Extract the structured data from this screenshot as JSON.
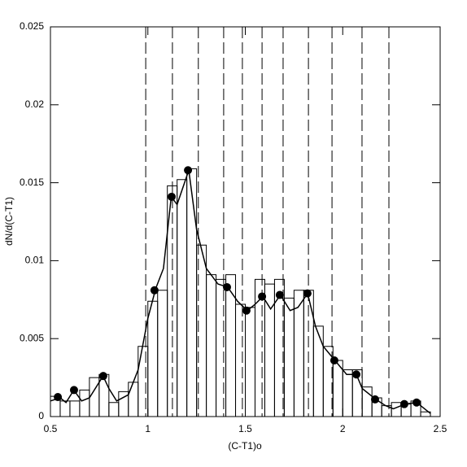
{
  "chart_data": {
    "type": "histogram",
    "xlabel": "(C-T1)o",
    "ylabel": "dN/d(C-T1)",
    "xlim": [
      0.5,
      2.5
    ],
    "ylim": [
      0,
      0.025
    ],
    "xticks": [
      0.5,
      1,
      1.5,
      2,
      2.5
    ],
    "yticks": [
      0,
      0.005,
      0.01,
      0.015,
      0.02,
      0.025
    ],
    "bins": [
      0.5,
      0.55,
      0.6,
      0.65,
      0.7,
      0.75,
      0.8,
      0.85,
      0.9,
      0.95,
      1.0,
      1.05,
      1.1,
      1.15,
      1.2,
      1.25,
      1.3,
      1.35,
      1.4,
      1.45,
      1.5,
      1.55,
      1.6,
      1.65,
      1.7,
      1.75,
      1.8,
      1.85,
      1.9,
      1.95,
      2.0,
      2.05,
      2.1,
      2.15,
      2.2,
      2.25,
      2.3,
      2.35,
      2.4,
      2.45
    ],
    "counts": [
      0.0013,
      0.001,
      0.001,
      0.0017,
      0.0025,
      0.0027,
      0.0009,
      0.0016,
      0.0022,
      0.0045,
      0.0074,
      0.0081,
      0.0148,
      0.0152,
      0.0159,
      0.011,
      0.0091,
      0.0088,
      0.0091,
      0.0072,
      0.007,
      0.0088,
      0.0085,
      0.0088,
      0.0076,
      0.0081,
      0.0081,
      0.0058,
      0.0045,
      0.0036,
      0.003,
      0.003,
      0.0019,
      0.0012,
      0.0007,
      0.0009,
      0.0008,
      0.001,
      0.0003
    ],
    "curve": {
      "x": [
        0.5,
        0.55,
        0.58,
        0.62,
        0.66,
        0.7,
        0.77,
        0.8,
        0.84,
        0.9,
        0.95,
        1.0,
        1.04,
        1.08,
        1.12,
        1.15,
        1.21,
        1.25,
        1.3,
        1.36,
        1.41,
        1.46,
        1.51,
        1.55,
        1.59,
        1.63,
        1.68,
        1.73,
        1.77,
        1.82,
        1.86,
        1.9,
        1.96,
        2.02,
        2.07,
        2.1,
        2.17,
        2.22,
        2.26,
        2.32,
        2.38,
        2.45
      ],
      "values": [
        0.001,
        0.0012,
        0.0009,
        0.0017,
        0.001,
        0.0012,
        0.0026,
        0.0018,
        0.001,
        0.0014,
        0.003,
        0.0063,
        0.0082,
        0.0095,
        0.0141,
        0.0136,
        0.0158,
        0.012,
        0.0095,
        0.0085,
        0.0083,
        0.0074,
        0.0068,
        0.0072,
        0.0077,
        0.0069,
        0.0078,
        0.0068,
        0.007,
        0.0079,
        0.0058,
        0.0045,
        0.0036,
        0.0027,
        0.0027,
        0.0018,
        0.0011,
        0.0007,
        0.0005,
        0.0008,
        0.0009,
        0.0002
      ]
    },
    "points": {
      "x": [
        0.538,
        0.621,
        0.771,
        1.034,
        1.122,
        1.206,
        1.406,
        1.506,
        1.586,
        1.677,
        1.819,
        1.957,
        2.07,
        2.166,
        2.316,
        2.379
      ],
      "values": [
        0.00125,
        0.0017,
        0.0026,
        0.0081,
        0.0141,
        0.0158,
        0.0083,
        0.0068,
        0.0077,
        0.0078,
        0.0079,
        0.0036,
        0.0027,
        0.0011,
        0.0008,
        0.0009
      ]
    },
    "vlines": [
      0.989,
      1.126,
      1.259,
      1.389,
      1.485,
      1.586,
      1.694,
      1.824,
      1.945,
      2.099,
      2.237
    ],
    "color": "#000000"
  }
}
